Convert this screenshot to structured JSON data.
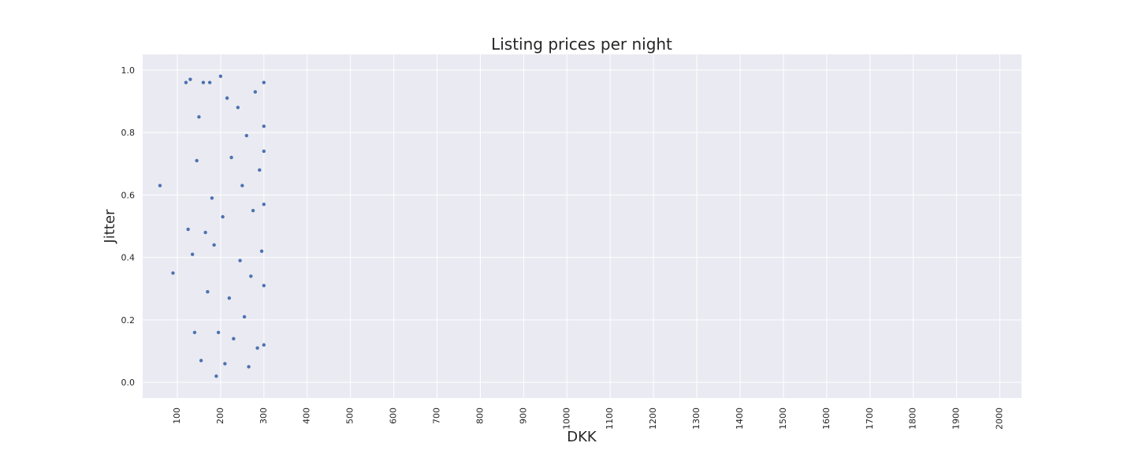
{
  "chart_data": {
    "type": "scatter",
    "title": "Listing prices per night",
    "xlabel": "DKK",
    "ylabel": "Jitter",
    "xlim": [
      20,
      2050
    ],
    "ylim": [
      -0.05,
      1.05
    ],
    "grid": true,
    "legend": "none",
    "colors": {
      "background": "#eaeaf2",
      "grid": "#ffffff",
      "point": "#4c72b0",
      "text": "#262626"
    },
    "x_ticks": [
      100,
      200,
      300,
      400,
      500,
      600,
      700,
      800,
      900,
      1000,
      1100,
      1200,
      1300,
      1400,
      1500,
      1600,
      1700,
      1800,
      1900,
      2000
    ],
    "y_ticks": [
      0.0,
      0.2,
      0.4,
      0.6,
      0.8,
      1.0
    ],
    "y_tick_labels": [
      "0.0",
      "0.2",
      "0.4",
      "0.6",
      "0.8",
      "1.0"
    ],
    "series": [
      {
        "points": [
          [
            60,
            0.63
          ],
          [
            90,
            0.35
          ],
          [
            120,
            0.96
          ],
          [
            125,
            0.49
          ],
          [
            130,
            0.97
          ],
          [
            135,
            0.41
          ],
          [
            140,
            0.16
          ],
          [
            145,
            0.71
          ],
          [
            150,
            0.85
          ],
          [
            155,
            0.07
          ],
          [
            160,
            0.96
          ],
          [
            165,
            0.48
          ],
          [
            170,
            0.29
          ],
          [
            175,
            0.96
          ],
          [
            180,
            0.59
          ],
          [
            185,
            0.44
          ],
          [
            190,
            0.02
          ],
          [
            195,
            0.16
          ],
          [
            200,
            0.98
          ],
          [
            205,
            0.53
          ],
          [
            210,
            0.06
          ],
          [
            215,
            0.91
          ],
          [
            220,
            0.27
          ],
          [
            225,
            0.72
          ],
          [
            230,
            0.14
          ],
          [
            240,
            0.88
          ],
          [
            245,
            0.39
          ],
          [
            250,
            0.63
          ],
          [
            255,
            0.21
          ],
          [
            260,
            0.79
          ],
          [
            265,
            0.05
          ],
          [
            270,
            0.34
          ],
          [
            275,
            0.55
          ],
          [
            280,
            0.93
          ],
          [
            285,
            0.11
          ],
          [
            290,
            0.68
          ],
          [
            295,
            0.42
          ],
          [
            300,
            0.82
          ],
          [
            300,
            0.31
          ],
          [
            300,
            0.12
          ],
          [
            300,
            0.57
          ],
          [
            300,
            0.96
          ],
          [
            300,
            0.74
          ]
        ]
      }
    ]
  }
}
